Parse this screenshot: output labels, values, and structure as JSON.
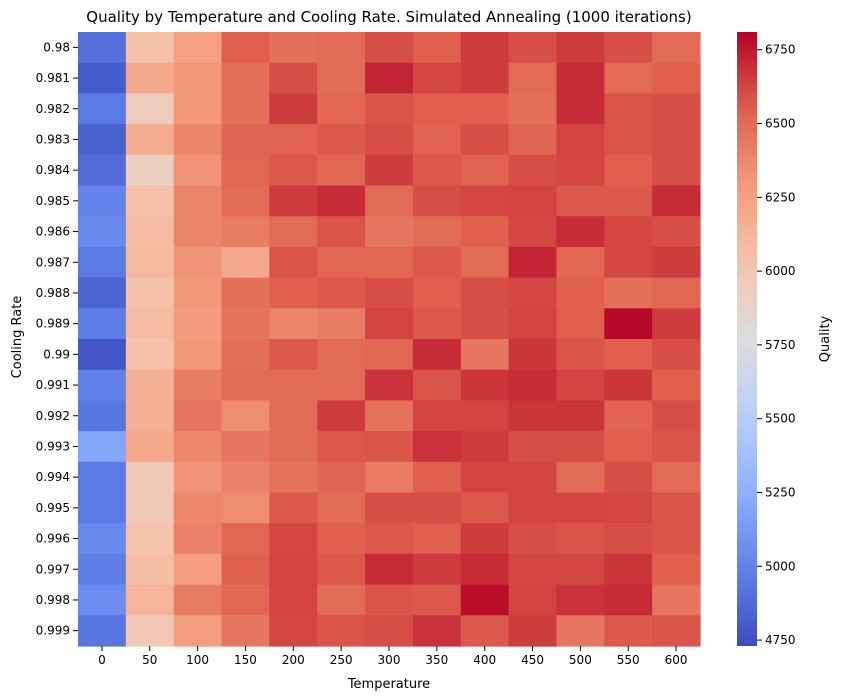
{
  "chart_data": {
    "type": "heatmap",
    "title": "Quality by Temperature and Cooling Rate. Simulated Annealing (1000 iterations)",
    "xlabel": "Temperature",
    "ylabel": "Cooling Rate",
    "x": [
      "0",
      "50",
      "100",
      "150",
      "200",
      "250",
      "300",
      "350",
      "400",
      "450",
      "500",
      "550",
      "600"
    ],
    "y": [
      "0.98",
      "0.981",
      "0.982",
      "0.983",
      "0.984",
      "0.985",
      "0.986",
      "0.987",
      "0.988",
      "0.989",
      "0.99",
      "0.991",
      "0.992",
      "0.993",
      "0.994",
      "0.995",
      "0.996",
      "0.997",
      "0.998",
      "0.999"
    ],
    "values": [
      [
        4900,
        6050,
        6250,
        6550,
        6480,
        6500,
        6600,
        6550,
        6650,
        6600,
        6650,
        6600,
        6500
      ],
      [
        4800,
        6200,
        6300,
        6480,
        6600,
        6500,
        6720,
        6620,
        6650,
        6500,
        6700,
        6500,
        6550
      ],
      [
        4950,
        5950,
        6300,
        6480,
        6650,
        6520,
        6580,
        6550,
        6550,
        6480,
        6700,
        6580,
        6600
      ],
      [
        4830,
        6180,
        6380,
        6530,
        6530,
        6570,
        6600,
        6530,
        6600,
        6530,
        6630,
        6580,
        6600
      ],
      [
        4880,
        5920,
        6320,
        6520,
        6570,
        6520,
        6650,
        6570,
        6530,
        6600,
        6620,
        6550,
        6600
      ],
      [
        5000,
        6050,
        6380,
        6500,
        6650,
        6700,
        6500,
        6600,
        6620,
        6630,
        6570,
        6570,
        6700
      ],
      [
        5030,
        6080,
        6380,
        6420,
        6500,
        6580,
        6450,
        6500,
        6550,
        6620,
        6700,
        6620,
        6600
      ],
      [
        4950,
        6100,
        6320,
        6200,
        6580,
        6520,
        6520,
        6570,
        6500,
        6720,
        6520,
        6620,
        6650
      ],
      [
        4850,
        6050,
        6300,
        6480,
        6550,
        6570,
        6600,
        6550,
        6600,
        6620,
        6550,
        6480,
        6520
      ],
      [
        4970,
        6080,
        6280,
        6470,
        6380,
        6420,
        6630,
        6570,
        6600,
        6630,
        6550,
        6800,
        6650
      ],
      [
        4780,
        6050,
        6300,
        6480,
        6570,
        6500,
        6520,
        6700,
        6450,
        6670,
        6580,
        6550,
        6600
      ],
      [
        4980,
        6150,
        6420,
        6500,
        6500,
        6500,
        6680,
        6580,
        6670,
        6700,
        6630,
        6670,
        6550
      ],
      [
        4930,
        6150,
        6450,
        6350,
        6500,
        6650,
        6470,
        6630,
        6630,
        6670,
        6670,
        6530,
        6600
      ],
      [
        5200,
        6200,
        6370,
        6450,
        6500,
        6570,
        6580,
        6680,
        6650,
        6600,
        6600,
        6550,
        6580
      ],
      [
        4950,
        5980,
        6320,
        6400,
        6470,
        6530,
        6430,
        6550,
        6630,
        6630,
        6500,
        6600,
        6500
      ],
      [
        4950,
        5980,
        6370,
        6350,
        6570,
        6500,
        6600,
        6600,
        6570,
        6630,
        6630,
        6620,
        6580
      ],
      [
        5030,
        6030,
        6400,
        6520,
        6620,
        6550,
        6570,
        6550,
        6650,
        6600,
        6580,
        6600,
        6580
      ],
      [
        4970,
        6070,
        6270,
        6550,
        6630,
        6570,
        6700,
        6650,
        6700,
        6620,
        6620,
        6670,
        6550
      ],
      [
        5050,
        6120,
        6420,
        6520,
        6630,
        6500,
        6580,
        6570,
        6780,
        6630,
        6680,
        6700,
        6450
      ],
      [
        4930,
        6000,
        6270,
        6450,
        6620,
        6580,
        6600,
        6680,
        6570,
        6650,
        6450,
        6570,
        6580
      ]
    ],
    "colorbar": {
      "label": "Quality",
      "min": 4730,
      "max": 6810,
      "ticks": [
        4750,
        5000,
        5250,
        5500,
        5750,
        6000,
        6250,
        6500,
        6750
      ],
      "colormap": "coolwarm"
    },
    "grid": false
  }
}
